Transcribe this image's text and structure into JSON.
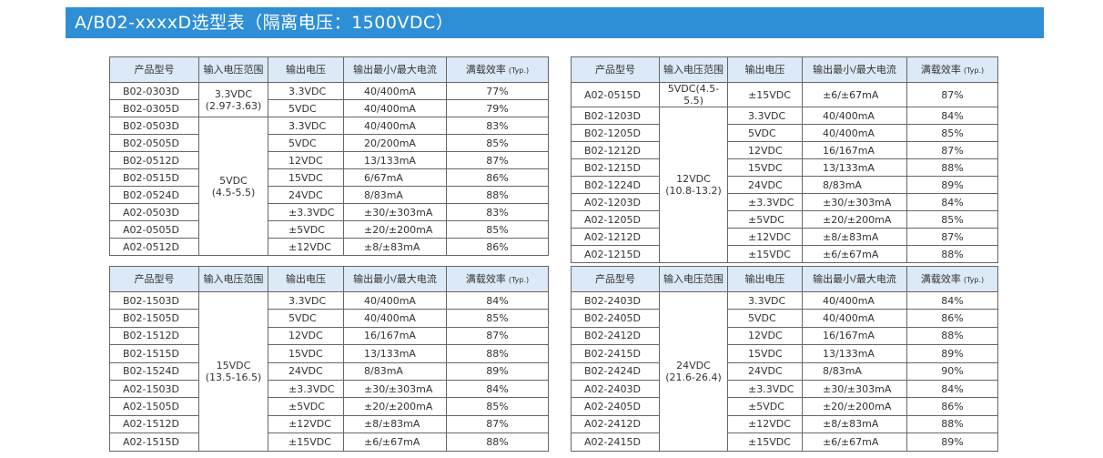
{
  "header": {
    "title": "A/B02-xxxxD选型表（隔离电压：1500VDC）"
  },
  "tables": [
    {
      "headers": [
        "产品型号",
        "输入电压范围",
        "输出电压",
        "输出最小/最大电流",
        "满载效率"
      ],
      "header_note": "(Typ.)",
      "rows": [
        [
          "B02-0303D",
          "3.3VDC\n(2.97-3.63)",
          "3.3VDC",
          "40/400mA",
          "77%"
        ],
        [
          "B02-0305D",
          null,
          "5VDC",
          "40/400mA",
          "79%"
        ],
        [
          "B02-0503D",
          "5VDC\n(4.5-5.5)",
          "3.3VDC",
          "40/400mA",
          "83%"
        ],
        [
          "B02-0505D",
          null,
          "5VDC",
          "20/200mA",
          "85%"
        ],
        [
          "B02-0512D",
          null,
          "12VDC",
          "13/133mA",
          "87%"
        ],
        [
          "B02-0515D",
          null,
          "15VDC",
          "6/67mA",
          "86%"
        ],
        [
          "B02-0524D",
          null,
          "24VDC",
          "8/83mA",
          "88%"
        ],
        [
          "A02-0503D",
          null,
          "±3.3VDC",
          "±30/±303mA",
          "83%"
        ],
        [
          "A02-0505D",
          null,
          "±5VDC",
          "±20/±200mA",
          "85%"
        ],
        [
          "A02-0512D",
          null,
          "±12VDC",
          "±8/±83mA",
          "86%"
        ]
      ]
    },
    {
      "headers": [
        "产品型号",
        "输入电压范围",
        "输出电压",
        "输出最小/最大电流",
        "满载效率"
      ],
      "header_note": "(Typ.)",
      "rows": [
        [
          "A02-0515D",
          "5VDC(4.5-5.5)",
          "±15VDC",
          "±6/±67mA",
          "87%"
        ],
        [
          "B02-1203D",
          "12VDC\n(10.8-13.2)",
          "3.3VDC",
          "40/400mA",
          "84%"
        ],
        [
          "B02-1205D",
          null,
          "5VDC",
          "40/400mA",
          "85%"
        ],
        [
          "B02-1212D",
          null,
          "12VDC",
          "16/167mA",
          "87%"
        ],
        [
          "B02-1215D",
          null,
          "15VDC",
          "13/133mA",
          "88%"
        ],
        [
          "B02-1224D",
          null,
          "24VDC",
          "8/83mA",
          "89%"
        ],
        [
          "A02-1203D",
          null,
          "±3.3VDC",
          "±30/±303mA",
          "84%"
        ],
        [
          "A02-1205D",
          null,
          "±5VDC",
          "±20/±200mA",
          "85%"
        ],
        [
          "A02-1212D",
          null,
          "±12VDC",
          "±8/±83mA",
          "87%"
        ],
        [
          "A02-1215D",
          null,
          "±15VDC",
          "±6/±67mA",
          "88%"
        ]
      ]
    },
    {
      "headers": [
        "产品型号",
        "输入电压范围",
        "输出电压",
        "输出最小/最大电流",
        "满载效率"
      ],
      "header_note": "(Typ.)",
      "rows": [
        [
          "B02-1503D",
          "15VDC\n(13.5-16.5)",
          "3.3VDC",
          "40/400mA",
          "84%"
        ],
        [
          "B02-1505D",
          null,
          "5VDC",
          "40/400mA",
          "85%"
        ],
        [
          "B02-1512D",
          null,
          "12VDC",
          "16/167mA",
          "87%"
        ],
        [
          "B02-1515D",
          null,
          "15VDC",
          "13/133mA",
          "88%"
        ],
        [
          "B02-1524D",
          null,
          "24VDC",
          "8/83mA",
          "89%"
        ],
        [
          "A02-1503D",
          null,
          "±3.3VDC",
          "±30/±303mA",
          "84%"
        ],
        [
          "A02-1505D",
          null,
          "±5VDC",
          "±20/±200mA",
          "85%"
        ],
        [
          "A02-1512D",
          null,
          "±12VDC",
          "±8/±83mA",
          "87%"
        ],
        [
          "A02-1515D",
          null,
          "±15VDC",
          "±6/±67mA",
          "88%"
        ]
      ]
    },
    {
      "headers": [
        "产品型号",
        "输入电压范围",
        "输出电压",
        "输出最小/最大电流",
        "满载效率"
      ],
      "header_note": "(Typ.)",
      "rows": [
        [
          "B02-2403D",
          "24VDC\n(21.6-26.4)",
          "3.3VDC",
          "40/400mA",
          "84%"
        ],
        [
          "B02-2405D",
          null,
          "5VDC",
          "40/400mA",
          "86%"
        ],
        [
          "B02-2412D",
          null,
          "12VDC",
          "16/167mA",
          "88%"
        ],
        [
          "B02-2415D",
          null,
          "15VDC",
          "13/133mA",
          "89%"
        ],
        [
          "B02-2424D",
          null,
          "24VDC",
          "8/83mA",
          "90%"
        ],
        [
          "A02-2403D",
          null,
          "±3.3VDC",
          "±30/±303mA",
          "84%"
        ],
        [
          "A02-2405D",
          null,
          "±5VDC",
          "±20/±200mA",
          "86%"
        ],
        [
          "A02-2412D",
          null,
          "±12VDC",
          "±8/±83mA",
          "88%"
        ],
        [
          "A02-2415D",
          null,
          "±15VDC",
          "±6/±67mA",
          "89%"
        ]
      ]
    }
  ]
}
